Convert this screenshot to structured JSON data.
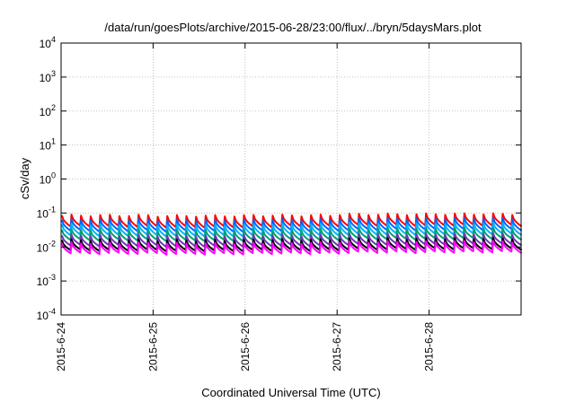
{
  "chart_data": {
    "type": "line",
    "title": "/data/run/goesPlots/archive/2015-06-28/23:00/flux/../bryn/5daysMars.plot",
    "xlabel": "Coordinated Universal Time (UTC)",
    "ylabel": "cSv/day",
    "yscale": "log",
    "ylim": [
      0.0001,
      10000
    ],
    "xlim_days": [
      0,
      5
    ],
    "grid": true,
    "legend": "none",
    "y_ticks": [
      {
        "base": "10",
        "exp": "-4"
      },
      {
        "base": "10",
        "exp": "-3"
      },
      {
        "base": "10",
        "exp": "-2"
      },
      {
        "base": "10",
        "exp": "-1"
      },
      {
        "base": "10",
        "exp": "0"
      },
      {
        "base": "10",
        "exp": "1"
      },
      {
        "base": "10",
        "exp": "2"
      },
      {
        "base": "10",
        "exp": "3"
      },
      {
        "base": "10",
        "exp": "4"
      }
    ],
    "x_ticks": [
      "2015-6-24",
      "2015-6-25",
      "2015-6-26",
      "2015-6-27",
      "2015-6-28"
    ],
    "cycle_count": 48,
    "series": [
      {
        "color": "#ff0000",
        "low": 0.04,
        "high": 0.085
      },
      {
        "color": "#0066ff",
        "low": 0.03,
        "high": 0.063
      },
      {
        "color": "#00b0ff",
        "low": 0.022,
        "high": 0.046
      },
      {
        "color": "#00a070",
        "low": 0.016,
        "high": 0.032
      },
      {
        "color": "#6a3ab0",
        "low": 0.011,
        "high": 0.022
      },
      {
        "color": "#000000",
        "low": 0.008,
        "high": 0.016
      },
      {
        "color": "#ff00ff",
        "low": 0.0065,
        "high": 0.013
      }
    ],
    "day_amplitude_factor": [
      1.0,
      0.97,
      1.0,
      1.08,
      1.1
    ]
  }
}
